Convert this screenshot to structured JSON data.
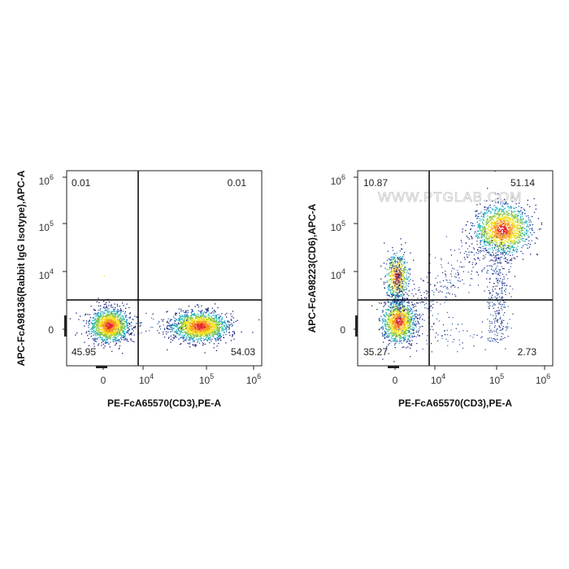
{
  "watermark": "WWW.PTGLAB.COM",
  "chart_data": [
    {
      "type": "scatter",
      "title": "",
      "xlabel": "PE-FcA65570(CD3),PE-A",
      "ylabel": "APC-FcA98136(Rabbit IgG Isotype),APC-A",
      "x_ticks": [
        "0",
        "10",
        "10",
        "10"
      ],
      "x_tick_exp": [
        "",
        "4",
        "5",
        "6"
      ],
      "y_ticks": [
        "0",
        "10",
        "10",
        "10"
      ],
      "y_tick_exp": [
        "",
        "4",
        "5",
        "6"
      ],
      "quadrants": {
        "upper_left": "0.01",
        "upper_right": "0.01",
        "lower_left": "45.95",
        "lower_right": "54.03"
      },
      "populations": [
        {
          "name": "",
          "x_center": 0,
          "y_center": 0,
          "percent": 45.95
        },
        {
          "name": "",
          "x_center": 110000,
          "y_center": 0,
          "percent": 54.03
        }
      ]
    },
    {
      "type": "scatter",
      "title": "",
      "xlabel": "PE-FcA65570(CD3),PE-A",
      "ylabel": "APC-FcA98223(CD6),APC-A",
      "x_ticks": [
        "0",
        "10",
        "10",
        "10"
      ],
      "x_tick_exp": [
        "",
        "4",
        "5",
        "6"
      ],
      "y_ticks": [
        "0",
        "10",
        "10",
        "10"
      ],
      "y_tick_exp": [
        "",
        "4",
        "5",
        "6"
      ],
      "quadrants": {
        "upper_left": "10.87",
        "upper_right": "51.14",
        "lower_left": "35.27",
        "lower_right": "2.73"
      },
      "populations": [
        {
          "name": "",
          "x_center": 0,
          "y_center": 0,
          "percent": 35.27
        },
        {
          "name": "",
          "x_center": 0,
          "y_center": 6000,
          "percent": 10.87
        },
        {
          "name": "",
          "x_center": 120000,
          "y_center": 80000,
          "percent": 51.14
        },
        {
          "name": "",
          "x_center": 110000,
          "y_center": 0,
          "percent": 2.73
        }
      ]
    }
  ]
}
